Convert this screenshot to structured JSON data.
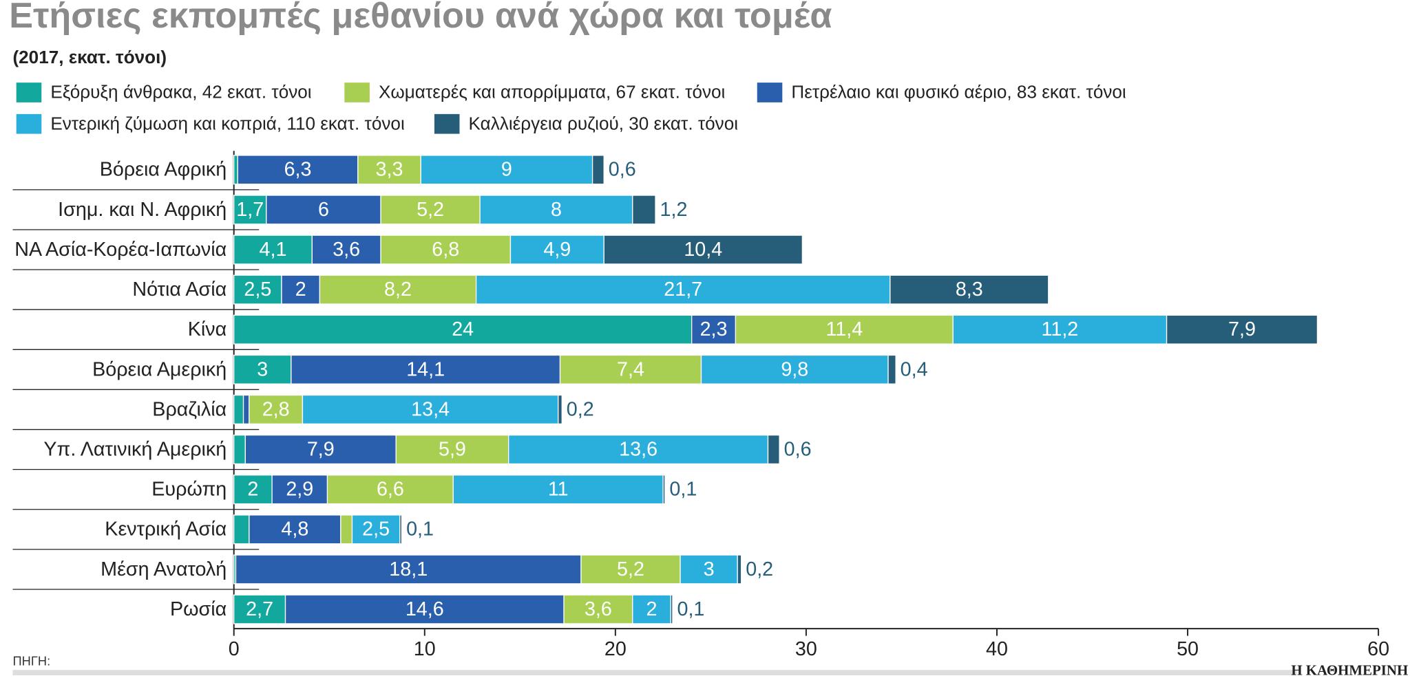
{
  "chart_data": {
    "type": "stacked-bar-horizontal",
    "title": "Ετήσιες εκπομπές μεθανίου ανά χώρα και τομέα",
    "subtitle": "(2017, εκατ. τόνοι)",
    "source": "ΠΗΓΗ:",
    "publisher": "Η ΚΑΘΗΜΕΡΙΝΗ",
    "categories": [
      "Βόρεια Αφρική",
      "Ισημ. και Ν. Αφρική",
      "ΝΑ Ασία-Κορέα-Ιαπωνία",
      "Νότια Ασία",
      "Κίνα",
      "Βόρεια Αμερική",
      "Βραζιλία",
      "Υπ. Λατινική Αμερική",
      "Ευρώπη",
      "Κεντρική Ασία",
      "Μέση Ανατολή",
      "Ρωσία"
    ],
    "series": [
      {
        "name": "Εξόρυξη άνθρακα, 42 εκατ. τόνοι",
        "color": "#13a89e",
        "values": [
          0.2,
          1.7,
          4.1,
          2.5,
          24,
          3,
          0.5,
          0.6,
          2,
          0.8,
          0.1,
          2.7
        ],
        "value_labels": [
          null,
          "1,7",
          "4,1",
          "2,5",
          "24",
          "3",
          null,
          null,
          "2",
          null,
          null,
          "2,7"
        ]
      },
      {
        "name": "Πετρέλαιο και φυσικό αέριο, 83 εκατ. τόνοι",
        "color": "#2a5fad",
        "values": [
          6.3,
          6,
          3.6,
          2,
          2.3,
          14.1,
          0.3,
          7.9,
          2.9,
          4.8,
          18.1,
          14.6
        ],
        "value_labels": [
          "6,3",
          "6",
          "3,6",
          "2",
          "2,3",
          "14,1",
          null,
          "7,9",
          "2,9",
          "4,8",
          "18,1",
          "14,6"
        ]
      },
      {
        "name": "Χωματερές και απορρίμματα, 67 εκατ. τόνοι",
        "color": "#a8cf52",
        "values": [
          3.3,
          5.2,
          6.8,
          8.2,
          11.4,
          7.4,
          2.8,
          5.9,
          6.6,
          0.6,
          5.2,
          3.6
        ],
        "value_labels": [
          "3,3",
          "5,2",
          "6,8",
          "8,2",
          "11,4",
          "7,4",
          "2,8",
          "5,9",
          "6,6",
          null,
          "5,2",
          "3,6"
        ]
      },
      {
        "name": "Εντερική ζύμωση και κοπριά, 110 εκατ. τόνοι",
        "color": "#2aaedc",
        "values": [
          9,
          8,
          4.9,
          21.7,
          11.2,
          9.8,
          13.4,
          13.6,
          11,
          2.5,
          3,
          2
        ],
        "value_labels": [
          "9",
          "8",
          "4,9",
          "21,7",
          "11,2",
          "9,8",
          "13,4",
          "13,6",
          "11",
          "2,5",
          "3",
          "2"
        ]
      },
      {
        "name": "Καλλιέργεια ρυζιού, 30 εκατ. τόνοι",
        "color": "#265e7a",
        "values": [
          0.6,
          1.2,
          10.4,
          8.3,
          7.9,
          0.4,
          0.2,
          0.6,
          0.1,
          0.1,
          0.2,
          0.1
        ],
        "value_labels": [
          "0,6",
          "1,2",
          "10,4",
          "8,3",
          "7,9",
          "0,4",
          "0,2",
          "0,6",
          "0,1",
          "0,1",
          "0,2",
          "0,1"
        ]
      }
    ],
    "xlim": [
      0,
      60
    ],
    "xticks": [
      0,
      10,
      20,
      30,
      40,
      50,
      60
    ]
  }
}
